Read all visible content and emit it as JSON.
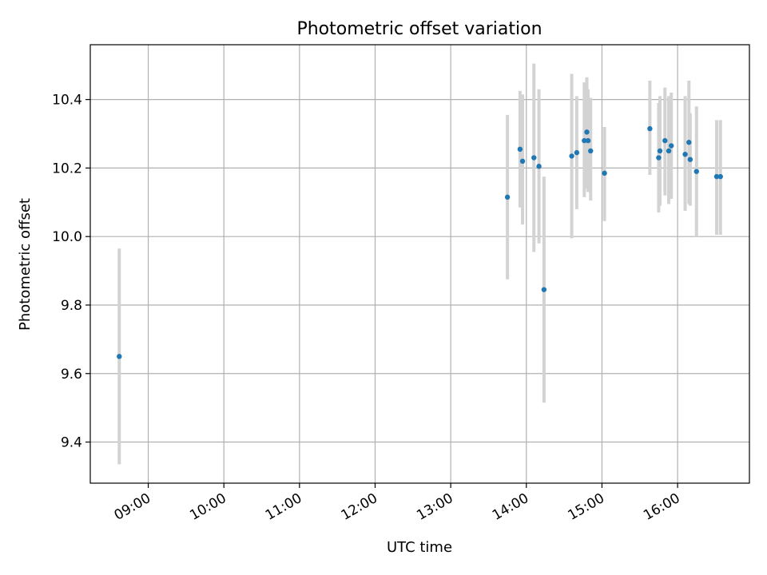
{
  "chart_data": {
    "type": "scatter",
    "title": "Photometric offset variation",
    "xlabel": "UTC time",
    "ylabel": "Photometric offset",
    "xlim": [
      "08:14",
      "16:57"
    ],
    "ylim": [
      9.28,
      10.56
    ],
    "xticks": [
      "09:00",
      "10:00",
      "11:00",
      "12:00",
      "13:00",
      "14:00",
      "15:00",
      "16:00"
    ],
    "yticks": [
      9.4,
      9.6,
      9.8,
      10.0,
      10.2,
      10.4
    ],
    "grid": true,
    "colors": {
      "point": "#1f77b4",
      "errorbar": "#d3d3d3",
      "grid": "#b0b0b0"
    },
    "points": [
      {
        "t": "08:37",
        "y": 9.65,
        "lo": 9.335,
        "hi": 9.965
      },
      {
        "t": "13:45",
        "y": 10.115,
        "lo": 9.875,
        "hi": 10.355
      },
      {
        "t": "13:55",
        "y": 10.255,
        "lo": 10.085,
        "hi": 10.425
      },
      {
        "t": "13:57",
        "y": 10.22,
        "lo": 10.035,
        "hi": 10.415
      },
      {
        "t": "14:06",
        "y": 10.23,
        "lo": 9.955,
        "hi": 10.505
      },
      {
        "t": "14:10",
        "y": 10.205,
        "lo": 9.98,
        "hi": 10.43
      },
      {
        "t": "14:14",
        "y": 9.845,
        "lo": 9.515,
        "hi": 10.175
      },
      {
        "t": "14:36",
        "y": 10.235,
        "lo": 9.995,
        "hi": 10.475
      },
      {
        "t": "14:40",
        "y": 10.245,
        "lo": 10.08,
        "hi": 10.41
      },
      {
        "t": "14:46",
        "y": 10.28,
        "lo": 10.115,
        "hi": 10.45
      },
      {
        "t": "14:48",
        "y": 10.305,
        "lo": 10.14,
        "hi": 10.465
      },
      {
        "t": "14:49",
        "y": 10.28,
        "lo": 10.13,
        "hi": 10.43
      },
      {
        "t": "14:51",
        "y": 10.25,
        "lo": 10.105,
        "hi": 10.405
      },
      {
        "t": "15:02",
        "y": 10.185,
        "lo": 10.045,
        "hi": 10.32
      },
      {
        "t": "15:38",
        "y": 10.315,
        "lo": 10.18,
        "hi": 10.455
      },
      {
        "t": "15:45",
        "y": 10.23,
        "lo": 10.07,
        "hi": 10.39
      },
      {
        "t": "15:46",
        "y": 10.25,
        "lo": 10.09,
        "hi": 10.41
      },
      {
        "t": "15:50",
        "y": 10.28,
        "lo": 10.12,
        "hi": 10.435
      },
      {
        "t": "15:53",
        "y": 10.25,
        "lo": 10.095,
        "hi": 10.41
      },
      {
        "t": "15:55",
        "y": 10.265,
        "lo": 10.11,
        "hi": 10.42
      },
      {
        "t": "16:06",
        "y": 10.24,
        "lo": 10.075,
        "hi": 10.41
      },
      {
        "t": "16:09",
        "y": 10.275,
        "lo": 10.095,
        "hi": 10.455
      },
      {
        "t": "16:10",
        "y": 10.225,
        "lo": 10.09,
        "hi": 10.36
      },
      {
        "t": "16:15",
        "y": 10.19,
        "lo": 10.0,
        "hi": 10.38
      },
      {
        "t": "16:31",
        "y": 10.175,
        "lo": 10.005,
        "hi": 10.34
      },
      {
        "t": "16:34",
        "y": 10.175,
        "lo": 10.005,
        "hi": 10.34
      }
    ]
  }
}
